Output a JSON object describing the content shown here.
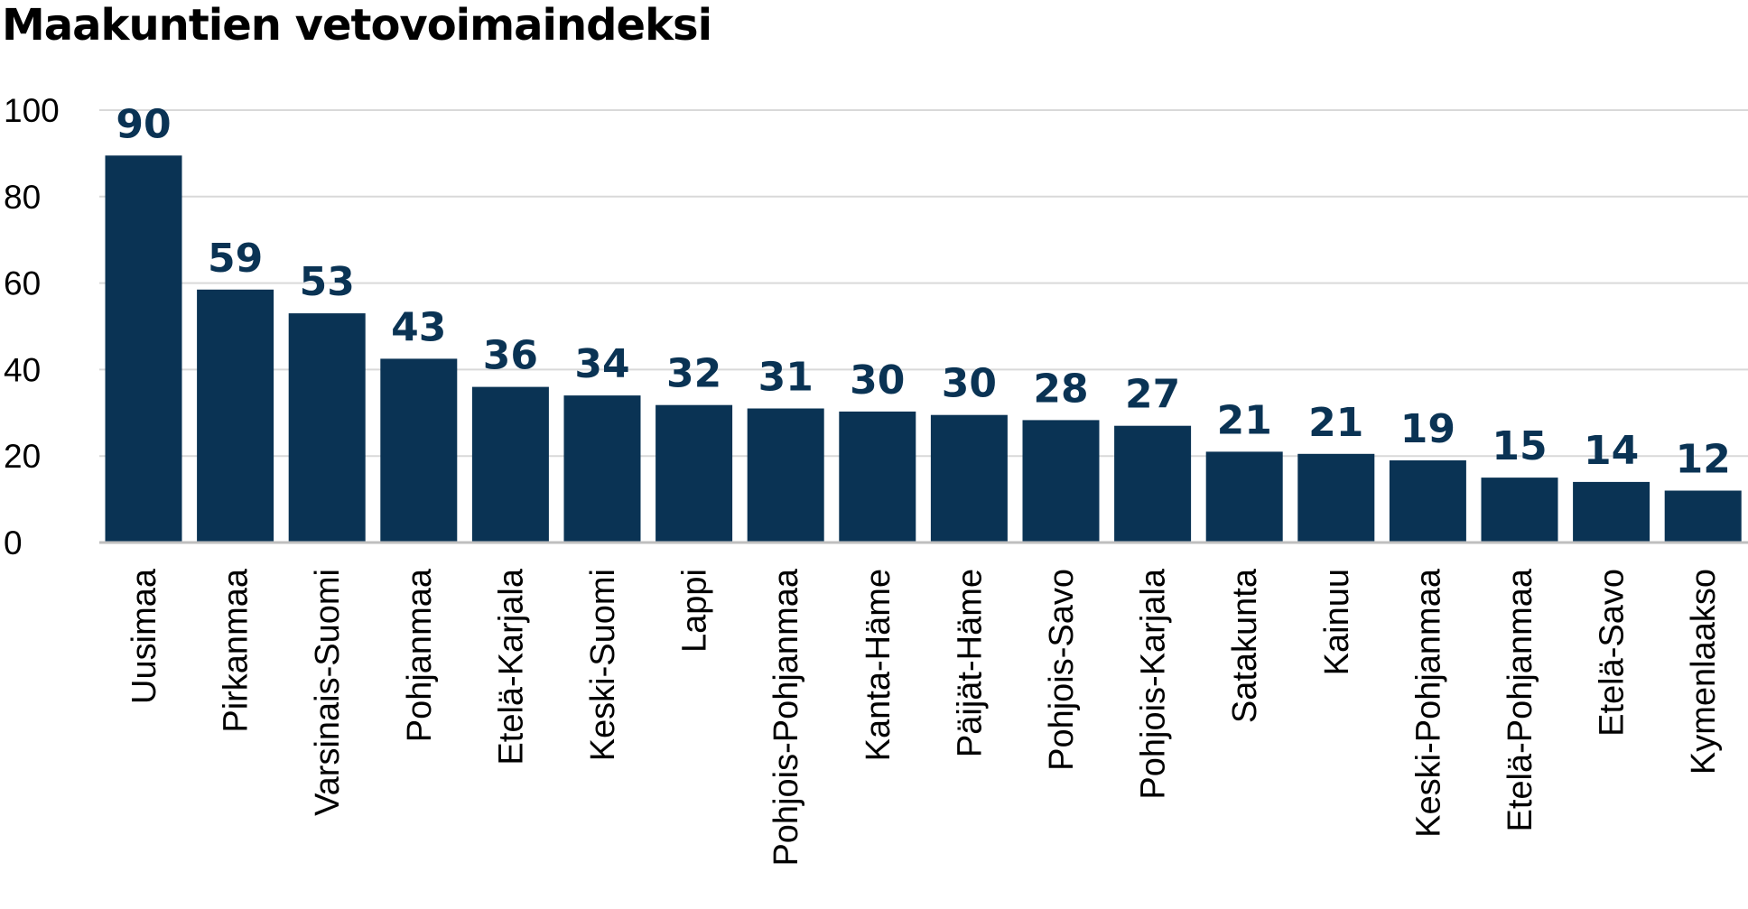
{
  "chart_data": {
    "type": "bar",
    "title": "Maakuntien vetovoimaindeksi",
    "xlabel": "",
    "ylabel": "",
    "ylim": [
      0,
      100
    ],
    "yticks": [
      0,
      20,
      40,
      60,
      80,
      100
    ],
    "grid": true,
    "legend": "none",
    "bar_color": "#0a3354",
    "label_color": "#0a3354",
    "categories": [
      "Uusimaa",
      "Pirkanmaa",
      "Varsinais-Suomi",
      "Pohjanmaa",
      "Etelä-Karjala",
      "Keski-Suomi",
      "Lappi",
      "Pohjois-Pohjanmaa",
      "Kanta-Häme",
      "Päijät-Häme",
      "Pohjois-Savo",
      "Pohjois-Karjala",
      "Satakunta",
      "Kainuu",
      "Keski-Pohjanmaa",
      "Etelä-Pohjanmaa",
      "Etelä-Savo",
      "Kymenlaakso"
    ],
    "values": [
      89.5,
      58.5,
      53,
      42.5,
      36,
      34,
      31.8,
      31,
      30.3,
      29.5,
      28.3,
      27,
      21,
      20.5,
      19,
      15,
      14,
      12
    ],
    "data_labels": [
      "90",
      "59",
      "53",
      "43",
      "36",
      "34",
      "32",
      "31",
      "30",
      "30",
      "28",
      "27",
      "21",
      "21",
      "19",
      "15",
      "14",
      "12"
    ]
  }
}
